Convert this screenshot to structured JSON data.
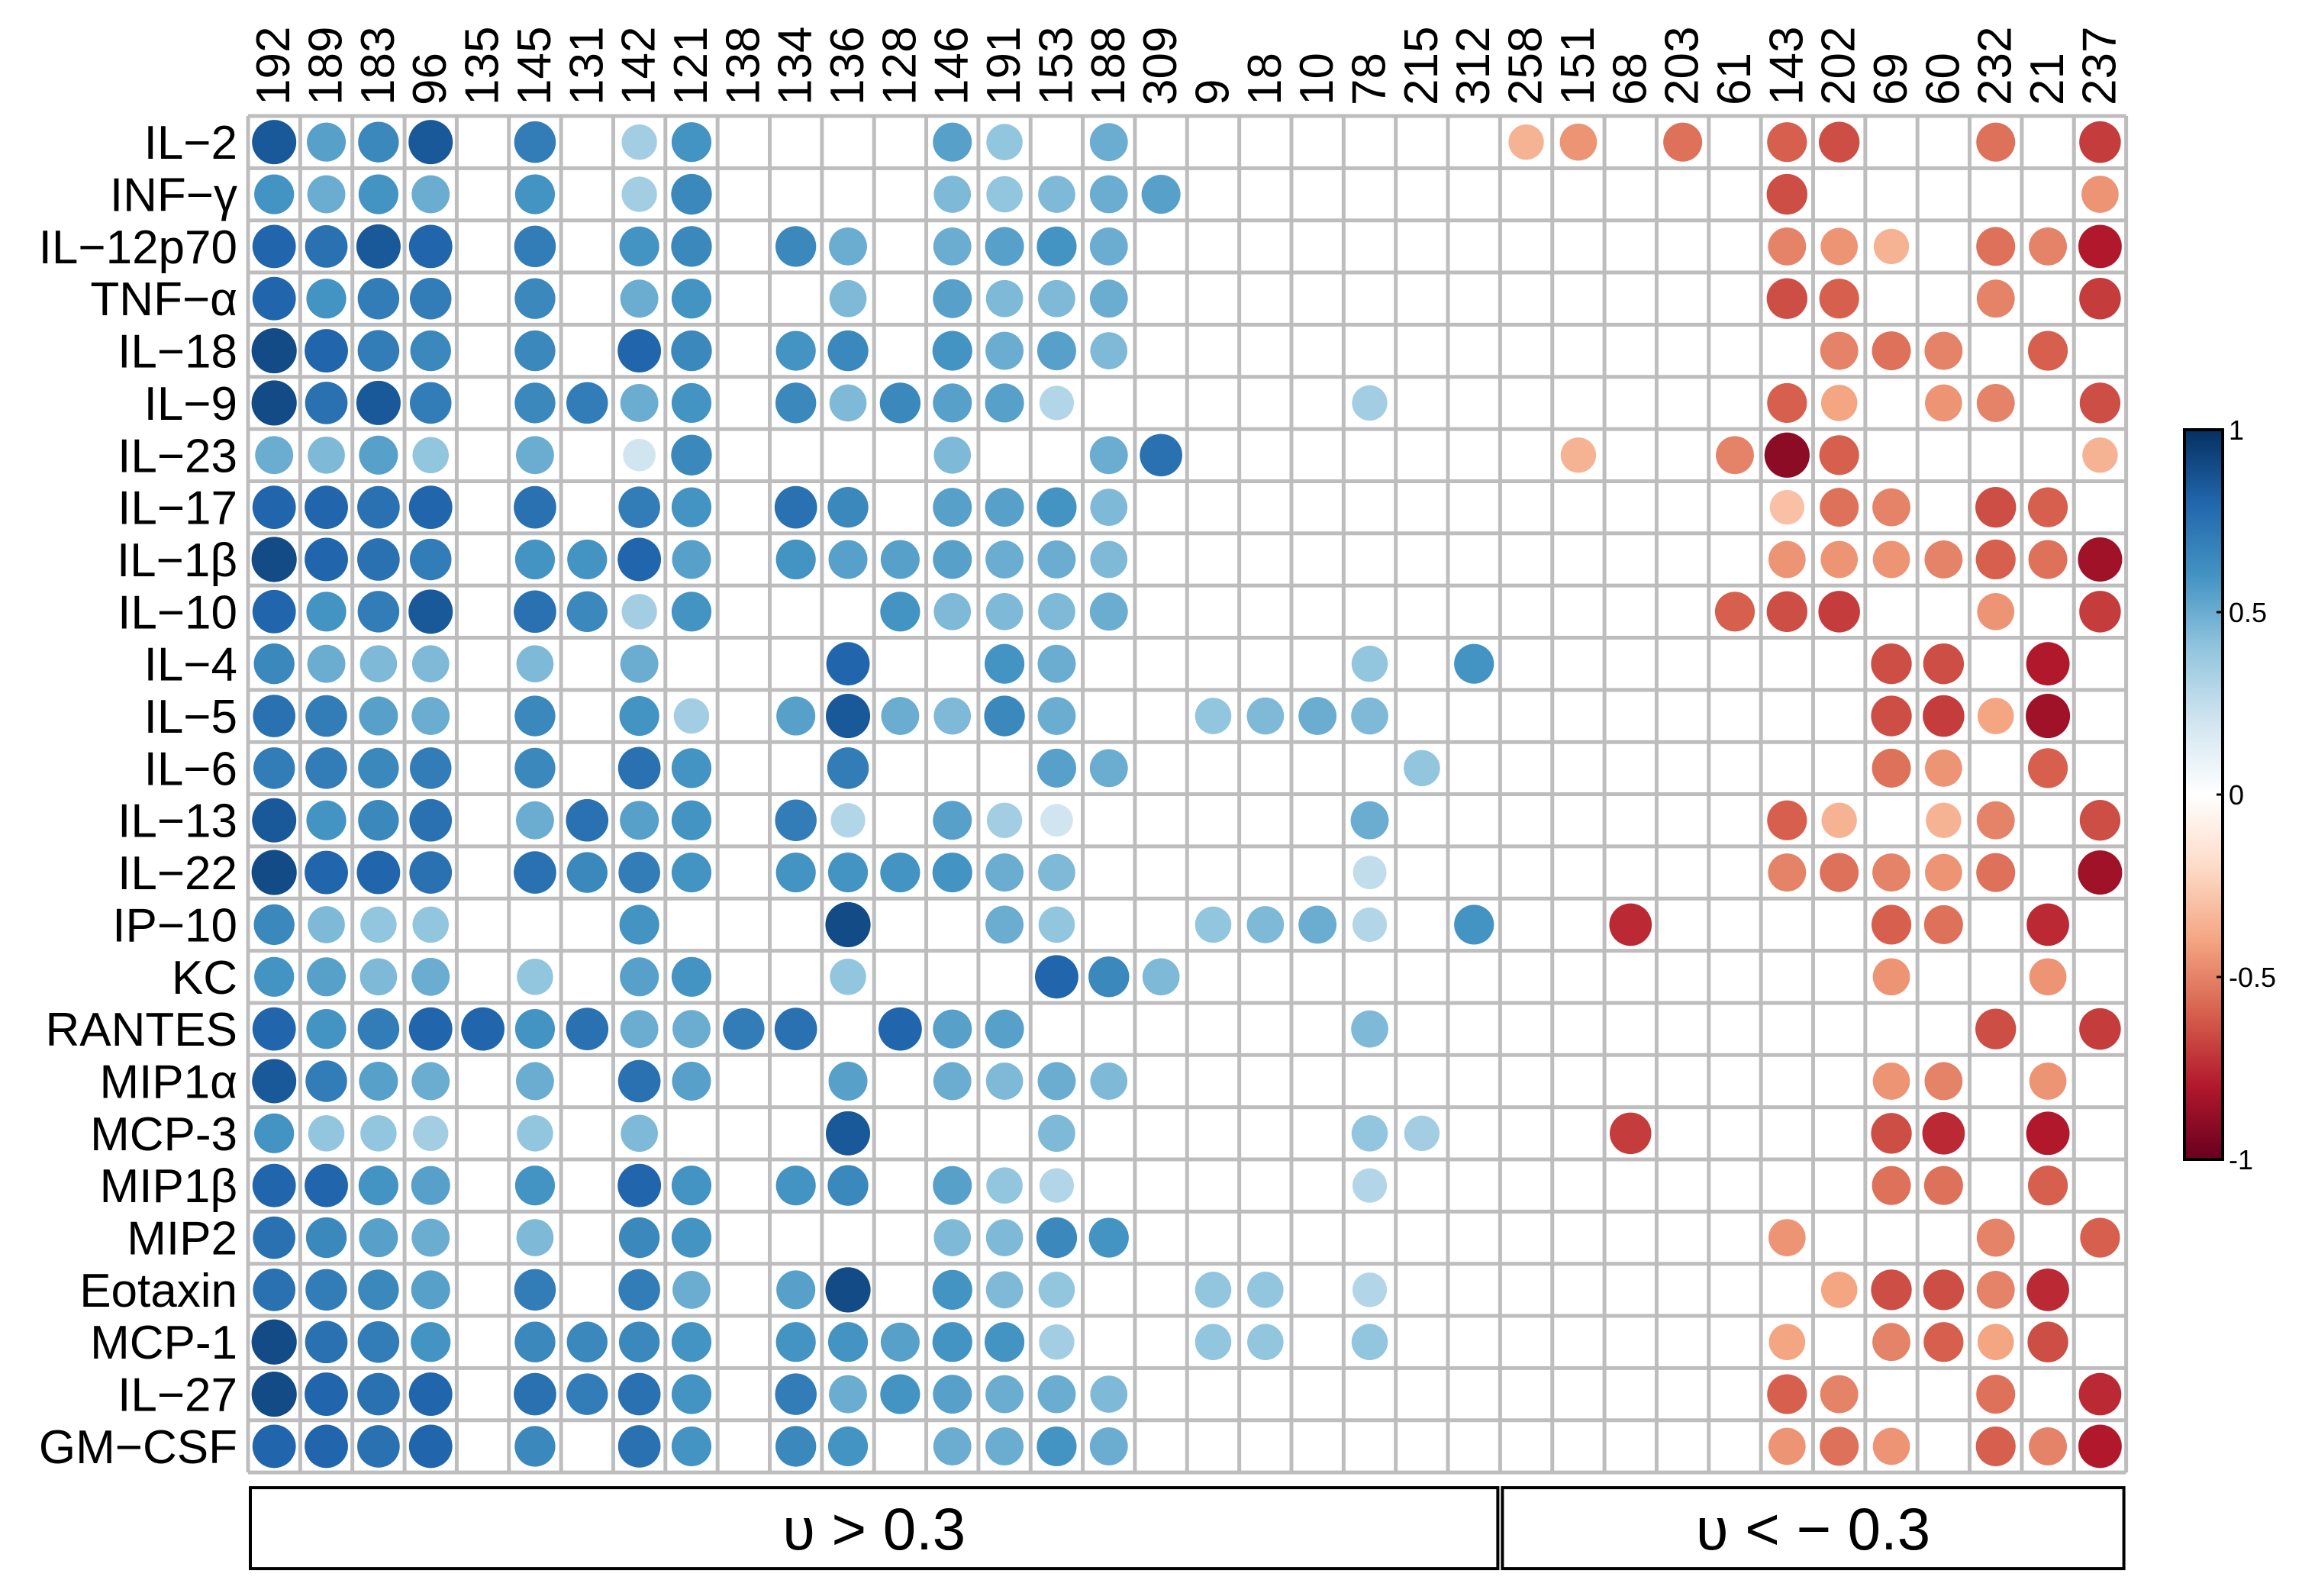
{
  "chart_data": {
    "type": "heatmap",
    "title": "",
    "xlabel": "",
    "ylabel": "",
    "x": [
      "192",
      "189",
      "183",
      "96",
      "135",
      "145",
      "131",
      "142",
      "121",
      "138",
      "134",
      "136",
      "128",
      "146",
      "191",
      "153",
      "188",
      "309",
      "9",
      "18",
      "10",
      "78",
      "215",
      "312",
      "258",
      "151",
      "68",
      "203",
      "61",
      "143",
      "202",
      "69",
      "60",
      "232",
      "21",
      "237"
    ],
    "y": [
      "IL−2",
      "INF−γ",
      "IL−12p70",
      "TNF−α",
      "IL−18",
      "IL−9",
      "IL−23",
      "IL−17",
      "IL−1β",
      "IL−10",
      "IL−4",
      "IL−5",
      "IL−6",
      "IL−13",
      "IL−22",
      "IP−10",
      "KC",
      "RANTES",
      "MIP1α",
      "MCP-3",
      "MIP1β",
      "MIP2",
      "Eotaxin",
      "MCP-1",
      "IL−27",
      "GM−CSF"
    ],
    "values": [
      [
        0.85,
        0.55,
        0.65,
        0.85,
        0,
        0.7,
        0,
        0.35,
        0.6,
        0,
        0,
        0,
        0,
        0.55,
        0.4,
        0,
        0.5,
        0,
        0,
        0,
        0,
        0,
        0,
        0,
        -0.35,
        -0.45,
        0,
        -0.55,
        0,
        -0.6,
        -0.65,
        0,
        0,
        -0.55,
        0,
        -0.7
      ],
      [
        0.6,
        0.5,
        0.6,
        0.5,
        0,
        0.6,
        0,
        0.35,
        0.65,
        0,
        0,
        0,
        0,
        0.45,
        0.4,
        0.45,
        0.5,
        0.55,
        0,
        0,
        0,
        0,
        0,
        0,
        0,
        0,
        0,
        0,
        0,
        -0.65,
        0,
        0,
        0,
        0,
        0,
        -0.45
      ],
      [
        0.8,
        0.75,
        0.85,
        0.8,
        0,
        0.7,
        0,
        0.6,
        0.65,
        0,
        0.65,
        0.5,
        0,
        0.5,
        0.55,
        0.6,
        0.5,
        0,
        0,
        0,
        0,
        0,
        0,
        0,
        0,
        0,
        0,
        0,
        0,
        -0.5,
        -0.45,
        -0.35,
        0,
        -0.55,
        -0.5,
        -0.8
      ],
      [
        0.8,
        0.6,
        0.7,
        0.7,
        0,
        0.65,
        0,
        0.5,
        0.6,
        0,
        0,
        0.45,
        0,
        0.55,
        0.45,
        0.45,
        0.5,
        0,
        0,
        0,
        0,
        0,
        0,
        0,
        0,
        0,
        0,
        0,
        0,
        -0.65,
        -0.6,
        0,
        0,
        -0.5,
        0,
        -0.7
      ],
      [
        0.9,
        0.8,
        0.7,
        0.65,
        0,
        0.65,
        0,
        0.8,
        0.65,
        0,
        0.6,
        0.65,
        0,
        0.6,
        0.5,
        0.55,
        0.45,
        0,
        0,
        0,
        0,
        0,
        0,
        0,
        0,
        0,
        0,
        0,
        0,
        0,
        -0.5,
        -0.55,
        -0.5,
        0,
        -0.6,
        0
      ],
      [
        0.9,
        0.75,
        0.85,
        0.7,
        0,
        0.65,
        0.7,
        0.5,
        0.6,
        0,
        0.65,
        0.45,
        0.65,
        0.55,
        0.55,
        0.3,
        0,
        0,
        0,
        0,
        0,
        0.35,
        0,
        0,
        0,
        0,
        0,
        0,
        0,
        -0.6,
        -0.4,
        0,
        -0.45,
        -0.5,
        0,
        -0.65
      ],
      [
        0.5,
        0.45,
        0.55,
        0.4,
        0,
        0.5,
        0,
        0.2,
        0.65,
        0,
        0,
        0,
        0,
        0.45,
        0,
        0,
        0.5,
        0.75,
        0,
        0,
        0,
        0,
        0,
        0,
        0,
        -0.35,
        0,
        0,
        -0.5,
        -0.9,
        -0.6,
        0,
        0,
        0,
        0,
        -0.35
      ],
      [
        0.8,
        0.8,
        0.75,
        0.8,
        0,
        0.75,
        0,
        0.7,
        0.6,
        0,
        0.75,
        0.65,
        0,
        0.55,
        0.55,
        0.6,
        0.45,
        0,
        0,
        0,
        0,
        0,
        0,
        0,
        0,
        0,
        0,
        0,
        0,
        -0.3,
        -0.55,
        -0.5,
        0,
        -0.65,
        -0.6,
        0
      ],
      [
        0.9,
        0.8,
        0.75,
        0.7,
        0,
        0.6,
        0.6,
        0.8,
        0.55,
        0,
        0.6,
        0.55,
        0.55,
        0.55,
        0.5,
        0.5,
        0.45,
        0,
        0,
        0,
        0,
        0,
        0,
        0,
        0,
        0,
        0,
        0,
        0,
        -0.45,
        -0.45,
        -0.45,
        -0.5,
        -0.6,
        -0.55,
        -0.85
      ],
      [
        0.8,
        0.6,
        0.7,
        0.85,
        0,
        0.75,
        0.65,
        0.35,
        0.6,
        0,
        0,
        0,
        0.6,
        0.45,
        0.45,
        0.45,
        0.5,
        0,
        0,
        0,
        0,
        0,
        0,
        0,
        0,
        0,
        0,
        0,
        -0.6,
        -0.65,
        -0.7,
        0,
        0,
        -0.45,
        0,
        -0.7
      ],
      [
        0.65,
        0.5,
        0.45,
        0.45,
        0,
        0.45,
        0,
        0.5,
        0,
        0,
        0,
        0.8,
        0,
        0,
        0.6,
        0.5,
        0,
        0,
        0,
        0,
        0,
        0.4,
        0,
        0.6,
        0,
        0,
        0,
        0,
        0,
        0,
        0,
        -0.65,
        -0.65,
        0,
        -0.8,
        0
      ],
      [
        0.75,
        0.7,
        0.55,
        0.5,
        0,
        0.65,
        0,
        0.6,
        0.35,
        0,
        0.55,
        0.85,
        0.5,
        0.45,
        0.65,
        0.5,
        0,
        0,
        0.4,
        0.45,
        0.5,
        0.45,
        0,
        0,
        0,
        0,
        0,
        0,
        0,
        0,
        0,
        -0.65,
        -0.7,
        -0.4,
        -0.85,
        0
      ],
      [
        0.7,
        0.7,
        0.65,
        0.7,
        0,
        0.65,
        0,
        0.75,
        0.6,
        0,
        0,
        0.7,
        0,
        0,
        0,
        0.55,
        0.5,
        0,
        0,
        0,
        0,
        0,
        0.4,
        0,
        0,
        0,
        0,
        0,
        0,
        0,
        0,
        -0.55,
        -0.45,
        0,
        -0.6,
        0
      ],
      [
        0.85,
        0.6,
        0.65,
        0.75,
        0,
        0.5,
        0.75,
        0.55,
        0.6,
        0,
        0.7,
        0.3,
        0,
        0.55,
        0.35,
        0.2,
        0,
        0,
        0,
        0,
        0,
        0.5,
        0,
        0,
        0,
        0,
        0,
        0,
        0,
        -0.6,
        -0.35,
        0,
        -0.35,
        -0.5,
        0,
        -0.65
      ],
      [
        0.9,
        0.8,
        0.8,
        0.75,
        0,
        0.75,
        0.65,
        0.7,
        0.6,
        0,
        0.6,
        0.6,
        0.6,
        0.6,
        0.5,
        0.45,
        0,
        0,
        0,
        0,
        0,
        0.25,
        0,
        0,
        0,
        0,
        0,
        0,
        0,
        -0.5,
        -0.55,
        -0.5,
        -0.45,
        -0.55,
        0,
        -0.85
      ],
      [
        0.65,
        0.45,
        0.4,
        0.4,
        0,
        0,
        0,
        0.6,
        0,
        0,
        0,
        0.9,
        0,
        0,
        0.5,
        0.4,
        0,
        0,
        0.4,
        0.45,
        0.5,
        0.3,
        0,
        0.6,
        0,
        0,
        -0.75,
        0,
        0,
        0,
        0,
        -0.6,
        -0.55,
        0,
        -0.75,
        0
      ],
      [
        0.6,
        0.55,
        0.45,
        0.5,
        0,
        0.4,
        0,
        0.55,
        0.6,
        0,
        0,
        0.4,
        0,
        0,
        0,
        0.8,
        0.65,
        0.45,
        0,
        0,
        0,
        0,
        0,
        0,
        0,
        0,
        0,
        0,
        0,
        0,
        0,
        -0.45,
        0,
        0,
        -0.45,
        0
      ],
      [
        0.8,
        0.6,
        0.7,
        0.8,
        0.8,
        0.6,
        0.75,
        0.5,
        0.5,
        0.7,
        0.75,
        0,
        0.8,
        0.55,
        0.55,
        0,
        0,
        0,
        0,
        0,
        0,
        0.45,
        0,
        0,
        0,
        0,
        0,
        0,
        0,
        0,
        0,
        0,
        0,
        -0.65,
        0,
        -0.7
      ],
      [
        0.85,
        0.7,
        0.55,
        0.5,
        0,
        0.5,
        0,
        0.75,
        0.55,
        0,
        0,
        0.55,
        0,
        0.5,
        0.45,
        0.5,
        0.45,
        0,
        0,
        0,
        0,
        0,
        0,
        0,
        0,
        0,
        0,
        0,
        0,
        0,
        0,
        -0.45,
        -0.5,
        0,
        -0.45,
        0
      ],
      [
        0.6,
        0.4,
        0.4,
        0.35,
        0,
        0.4,
        0,
        0.45,
        0,
        0,
        0,
        0.85,
        0,
        0,
        0,
        0.45,
        0,
        0,
        0,
        0,
        0,
        0.4,
        0.35,
        0,
        0,
        0,
        -0.7,
        0,
        0,
        0,
        0,
        -0.65,
        -0.75,
        0,
        -0.8,
        0
      ],
      [
        0.8,
        0.8,
        0.6,
        0.55,
        0,
        0.6,
        0,
        0.8,
        0.6,
        0,
        0.6,
        0.65,
        0,
        0.55,
        0.4,
        0.3,
        0,
        0,
        0,
        0,
        0,
        0.3,
        0,
        0,
        0,
        0,
        0,
        0,
        0,
        0,
        0,
        -0.55,
        -0.55,
        0,
        -0.6,
        0
      ],
      [
        0.75,
        0.65,
        0.55,
        0.5,
        0,
        0.45,
        0,
        0.65,
        0.6,
        0,
        0,
        0,
        0,
        0.45,
        0.45,
        0.65,
        0.6,
        0,
        0,
        0,
        0,
        0,
        0,
        0,
        0,
        0,
        0,
        0,
        0,
        -0.45,
        0,
        0,
        0,
        -0.5,
        0,
        -0.6
      ],
      [
        0.75,
        0.7,
        0.65,
        0.55,
        0,
        0.7,
        0,
        0.7,
        0.5,
        0,
        0.55,
        0.9,
        0,
        0.6,
        0.45,
        0.4,
        0,
        0,
        0.4,
        0.4,
        0,
        0.3,
        0,
        0,
        0,
        0,
        0,
        0,
        0,
        0,
        -0.4,
        -0.65,
        -0.65,
        -0.5,
        -0.75,
        0
      ],
      [
        0.9,
        0.75,
        0.7,
        0.6,
        0,
        0.65,
        0.65,
        0.65,
        0.6,
        0,
        0.6,
        0.6,
        0.55,
        0.6,
        0.6,
        0.35,
        0,
        0,
        0.4,
        0.4,
        0,
        0.4,
        0,
        0,
        0,
        0,
        0,
        0,
        0,
        -0.4,
        0,
        -0.5,
        -0.6,
        -0.4,
        -0.65,
        0
      ],
      [
        0.9,
        0.8,
        0.75,
        0.8,
        0,
        0.75,
        0.7,
        0.75,
        0.6,
        0,
        0.7,
        0.5,
        0.6,
        0.55,
        0.5,
        0.5,
        0.45,
        0,
        0,
        0,
        0,
        0,
        0,
        0,
        0,
        0,
        0,
        0,
        0,
        -0.6,
        -0.5,
        0,
        0,
        -0.55,
        0,
        -0.75
      ],
      [
        0.8,
        0.8,
        0.75,
        0.8,
        0,
        0.65,
        0,
        0.75,
        0.6,
        0,
        0.65,
        0.6,
        0,
        0.5,
        0.5,
        0.6,
        0.5,
        0,
        0,
        0,
        0,
        0,
        0,
        0,
        0,
        0,
        0,
        0,
        0,
        -0.45,
        -0.55,
        -0.45,
        0,
        -0.6,
        -0.5,
        -0.8
      ]
    ],
    "colorbar": {
      "range": [
        -1,
        1
      ],
      "ticks": [
        "1",
        "0.5",
        "0",
        "-0.5",
        "-1"
      ],
      "colors": [
        "#67001f",
        "#b2182b",
        "#d6604d",
        "#f4a582",
        "#fddbc7",
        "#ffffff",
        "#d1e5f0",
        "#92c5de",
        "#4393c3",
        "#2166ac",
        "#053061"
      ]
    },
    "groups": [
      {
        "label": "υ > 0.3",
        "from_column": "192",
        "to_column": "312"
      },
      {
        "label": "υ < − 0.3",
        "from_column": "258",
        "to_column": "237"
      }
    ]
  }
}
